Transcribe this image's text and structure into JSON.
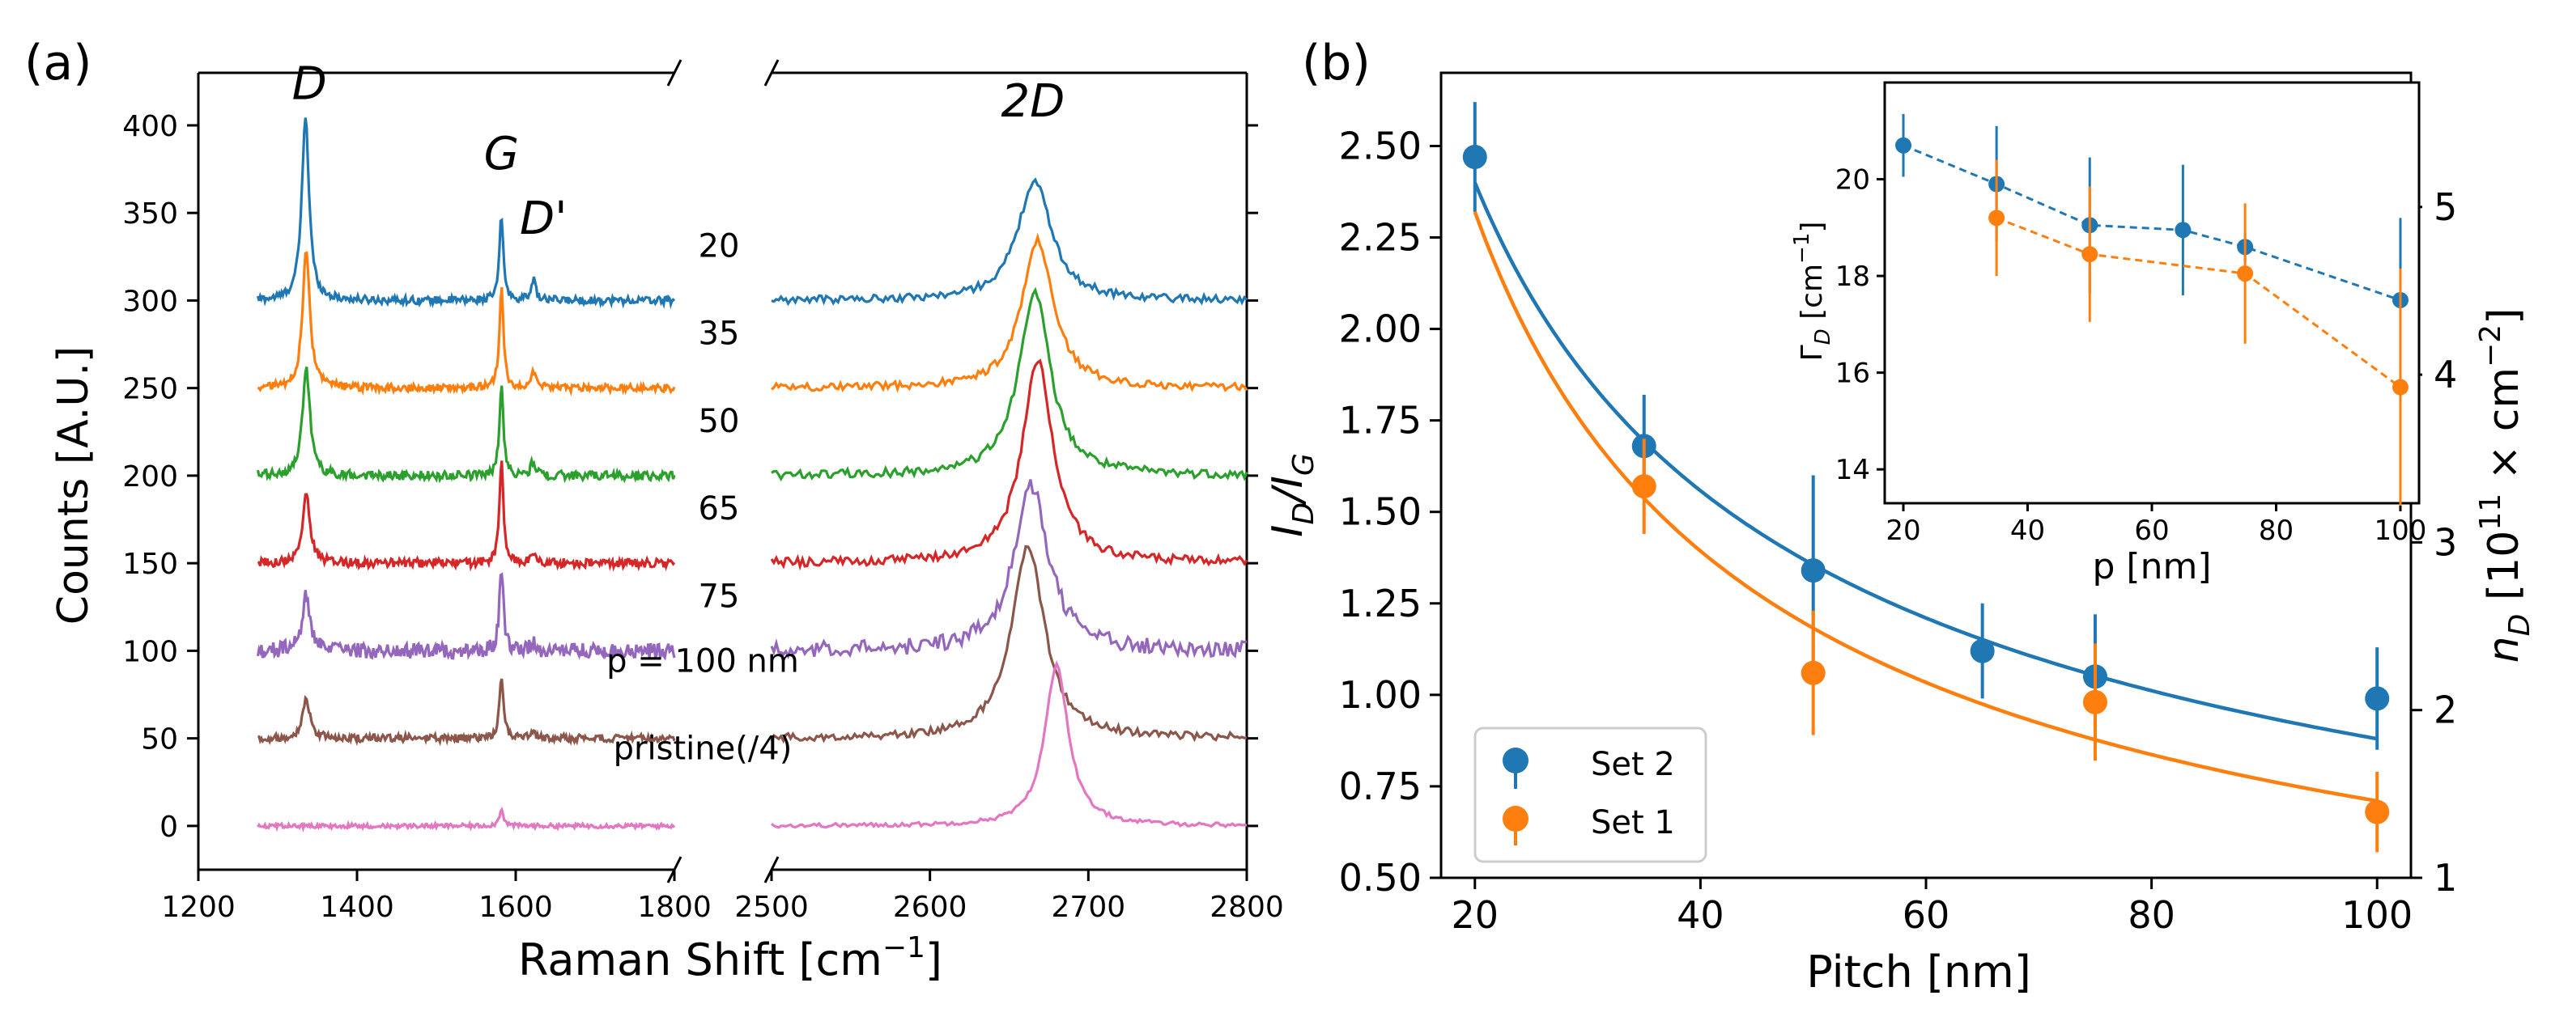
{
  "chart_data": [
    {
      "panel_label": "(a)",
      "type": "line",
      "title": "",
      "xlabel": "Raman Shift [cm",
      "xlabel_sup": "−1",
      "xlabel_close": "]",
      "ylabel": "Counts [A.U.]",
      "ylim": [
        -25,
        430
      ],
      "segments": [
        {
          "xlim": [
            1200,
            1800
          ],
          "ticks": [
            1200,
            1400,
            1600,
            1800
          ],
          "tick_labels": [
            "1200",
            "1400",
            "1600",
            "1800"
          ]
        },
        {
          "xlim": [
            2500,
            2800
          ],
          "ticks": [
            2500,
            2600,
            2700,
            2800
          ],
          "tick_labels": [
            "2500",
            "2600",
            "2700",
            "2800"
          ]
        }
      ],
      "yticks": [
        0,
        50,
        100,
        150,
        200,
        250,
        300,
        350,
        400
      ],
      "ytick_labels": [
        "0",
        "50",
        "100",
        "150",
        "200",
        "250",
        "300",
        "350",
        "400"
      ],
      "x_range_data": [
        1275,
        2800
      ],
      "peak_labels": [
        {
          "text": "D",
          "x": 1340,
          "y": 415
        },
        {
          "text": "G",
          "x": 1582,
          "y": 375
        },
        {
          "text": "D'",
          "x": 1635,
          "y": 338
        },
        {
          "text": "2D",
          "x": 2665,
          "y": 405
        }
      ],
      "series": [
        {
          "name": "20",
          "label": "20",
          "color": "#1f77b4",
          "offset": 300,
          "peaks": {
            "D": [
              1335,
              105,
              11
            ],
            "G": [
              1582,
              48,
              6
            ],
            "Dp": [
              1622,
              12,
              7
            ],
            "D2": [
              2666,
              68,
              26
            ]
          },
          "noise": 2.2
        },
        {
          "name": "35",
          "label": "35",
          "color": "#ff7f0e",
          "offset": 250,
          "peaks": {
            "D": [
              1336,
              78,
              11
            ],
            "G": [
              1582,
              57,
              6
            ],
            "Dp": [
              1622,
              10,
              7
            ],
            "D2": [
              2668,
              84,
              24
            ]
          },
          "noise": 2.2
        },
        {
          "name": "50",
          "label": "50",
          "color": "#2ca02c",
          "offset": 200,
          "peaks": {
            "D": [
              1336,
              62,
              11
            ],
            "G": [
              1582,
              53,
              6
            ],
            "Dp": [
              1622,
              8,
              7
            ],
            "D2": [
              2666,
              105,
              24
            ]
          },
          "noise": 2.6
        },
        {
          "name": "65",
          "label": "65",
          "color": "#d62728",
          "offset": 150,
          "peaks": {
            "D": [
              1336,
              40,
              11
            ],
            "G": [
              1582,
              58,
              6
            ],
            "Dp": [
              1622,
              6,
              7
            ],
            "D2": [
              2668,
              115,
              24
            ]
          },
          "noise": 2.6
        },
        {
          "name": "75",
          "label": "75",
          "color": "#9467bd",
          "offset": 100,
          "peaks": {
            "D": [
              1336,
              32,
              11
            ],
            "G": [
              1582,
              48,
              6
            ],
            "Dp": [
              1622,
              5,
              7
            ],
            "D2": [
              2664,
              95,
              26
            ]
          },
          "noise": 4.5
        },
        {
          "name": "100",
          "label": "p = 100 nm",
          "color": "#8c564b",
          "offset": 50,
          "peaks": {
            "D": [
              1336,
              23,
              11
            ],
            "G": [
              1582,
              36,
              6
            ],
            "Dp": [
              1622,
              3,
              7
            ],
            "D2": [
              2662,
              110,
              25
            ]
          },
          "noise": 2.2
        },
        {
          "name": "pristine",
          "label": "pristine(/4)",
          "color": "#e377c2",
          "offset": 0,
          "peaks": {
            "D": [
              1336,
              0,
              11
            ],
            "G": [
              1582,
              10,
              6
            ],
            "Dp": [
              1622,
              0,
              7
            ],
            "D2": [
              2680,
              92,
              18
            ]
          },
          "noise": 1.2
        }
      ]
    },
    {
      "panel_label": "(b)",
      "type": "scatter",
      "title": "",
      "xlabel": "Pitch [nm]",
      "ylabel_main": "I",
      "ylabel_sub1": "D",
      "ylabel_slash": "/I",
      "ylabel_sub2": "G",
      "y2label_main": "n",
      "y2label_sub": "D",
      "y2label_rest": " [10",
      "y2label_sup": "11",
      "y2label_rest2": " × cm",
      "y2label_sup2": "−2",
      "y2label_close": "]",
      "xlim": [
        17,
        103
      ],
      "ylim": [
        0.5,
        2.7
      ],
      "y2lim": [
        1,
        5.8
      ],
      "xticks": [
        20,
        40,
        60,
        80,
        100
      ],
      "xtick_labels": [
        "20",
        "40",
        "60",
        "80",
        "100"
      ],
      "yticks": [
        0.5,
        0.75,
        1.0,
        1.25,
        1.5,
        1.75,
        2.0,
        2.25,
        2.5
      ],
      "ytick_labels": [
        "0.50",
        "0.75",
        "1.00",
        "1.25",
        "1.50",
        "1.75",
        "2.00",
        "2.25",
        "2.50"
      ],
      "y2ticks": [
        1,
        2,
        3,
        4,
        5
      ],
      "y2tick_labels": [
        "1",
        "2",
        "3",
        "4",
        "5"
      ],
      "legend_position": "lower-left",
      "series": [
        {
          "name": "Set 2",
          "color": "#1f77b4",
          "x": [
            20,
            35,
            50,
            65,
            75,
            100
          ],
          "y": [
            2.47,
            1.68,
            1.34,
            1.12,
            1.05,
            0.99
          ],
          "yerr": [
            0.15,
            0.14,
            0.26,
            0.13,
            0.17,
            0.14
          ],
          "fit": {
            "a": 3.77,
            "b": -6.15,
            "x0": 20,
            "x1": 100
          }
        },
        {
          "name": "Set 1",
          "color": "#ff7f0e",
          "x": [
            35,
            50,
            75,
            100
          ],
          "y": [
            1.57,
            1.06,
            0.98,
            0.68
          ],
          "yerr": [
            0.13,
            0.17,
            0.16,
            0.11
          ],
          "fit": {
            "a": 2.4,
            "b": -6.1,
            "x0": 20,
            "x1": 100
          }
        }
      ],
      "legend": [
        "Set 2",
        "Set 1"
      ]
    },
    {
      "panel_label": "inset",
      "type": "line",
      "title": "",
      "xlabel": "p [nm]",
      "ylabel_main": "Γ",
      "ylabel_sub": "D",
      "ylabel_rest": " [cm",
      "ylabel_sup": "−1",
      "ylabel_close": "]",
      "xlim": [
        17,
        103
      ],
      "ylim": [
        13.3,
        22
      ],
      "xticks": [
        20,
        40,
        60,
        80,
        100
      ],
      "xtick_labels": [
        "20",
        "40",
        "60",
        "80",
        "100"
      ],
      "yticks": [
        14,
        16,
        18,
        20
      ],
      "ytick_labels": [
        "14",
        "16",
        "18",
        "20"
      ],
      "series": [
        {
          "name": "Set 2",
          "color": "#1f77b4",
          "x": [
            20,
            35,
            50,
            65,
            75,
            100
          ],
          "y": [
            20.7,
            19.9,
            19.05,
            18.95,
            18.6,
            17.5
          ],
          "yerr": [
            0.65,
            1.2,
            1.4,
            1.35,
            0.3,
            1.7
          ]
        },
        {
          "name": "Set 1",
          "color": "#ff7f0e",
          "x": [
            35,
            50,
            75,
            100
          ],
          "y": [
            19.2,
            18.45,
            18.05,
            15.7
          ],
          "yerr": [
            1.2,
            1.4,
            1.45,
            2.45
          ]
        }
      ]
    }
  ]
}
